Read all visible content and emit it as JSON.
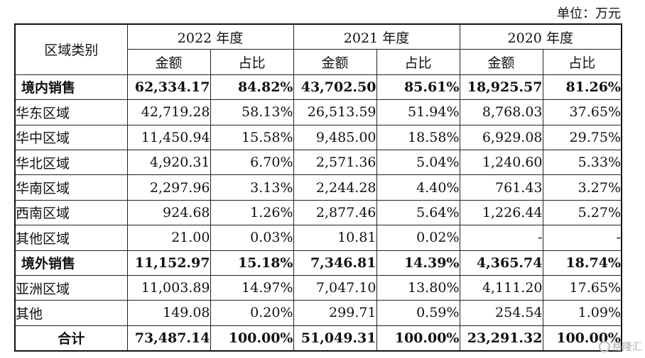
{
  "unit_label": "单位：万元",
  "headers": {
    "region": "区域类别",
    "years": [
      "2022 年度",
      "2021 年度",
      "2020 年度"
    ],
    "amount": "金额",
    "share": "占比"
  },
  "rows": [
    {
      "name": "境内销售",
      "style": "bold",
      "cells": [
        "62,334.17",
        "84.82%",
        "43,702.50",
        "85.61%",
        "18,925.57",
        "81.26%"
      ]
    },
    {
      "name": "华东区域",
      "style": "sub",
      "cells": [
        "42,719.28",
        "58.13%",
        "26,513.59",
        "51.94%",
        "8,768.03",
        "37.65%"
      ]
    },
    {
      "name": "华中区域",
      "style": "sub",
      "cells": [
        "11,450.94",
        "15.58%",
        "9,485.00",
        "18.58%",
        "6,929.08",
        "29.75%"
      ]
    },
    {
      "name": "华北区域",
      "style": "sub",
      "cells": [
        "4,920.31",
        "6.70%",
        "2,571.36",
        "5.04%",
        "1,240.60",
        "5.33%"
      ]
    },
    {
      "name": "华南区域",
      "style": "sub",
      "cells": [
        "2,297.96",
        "3.13%",
        "2,244.28",
        "4.40%",
        "761.43",
        "3.27%"
      ]
    },
    {
      "name": "西南区域",
      "style": "sub",
      "cells": [
        "924.68",
        "1.26%",
        "2,877.46",
        "5.64%",
        "1,226.44",
        "5.27%"
      ]
    },
    {
      "name": "其他区域",
      "style": "sub",
      "cells": [
        "21.00",
        "0.03%",
        "10.81",
        "0.02%",
        "-",
        "-"
      ]
    },
    {
      "name": "境外销售",
      "style": "bold",
      "cells": [
        "11,152.97",
        "15.18%",
        "7,346.81",
        "14.39%",
        "4,365.74",
        "18.74%"
      ]
    },
    {
      "name": "亚洲区域",
      "style": "sub",
      "cells": [
        "11,003.89",
        "14.97%",
        "7,047.10",
        "13.80%",
        "4,111.20",
        "17.65%"
      ]
    },
    {
      "name": "其他",
      "style": "sub",
      "cells": [
        "149.08",
        "0.20%",
        "299.71",
        "0.59%",
        "254.54",
        "1.09%"
      ]
    },
    {
      "name": "合计",
      "style": "total",
      "cells": [
        "73,487.14",
        "100.00%",
        "51,049.31",
        "100.00%",
        "23,291.32",
        "100.00%"
      ]
    }
  ],
  "watermark": "格隆汇"
}
